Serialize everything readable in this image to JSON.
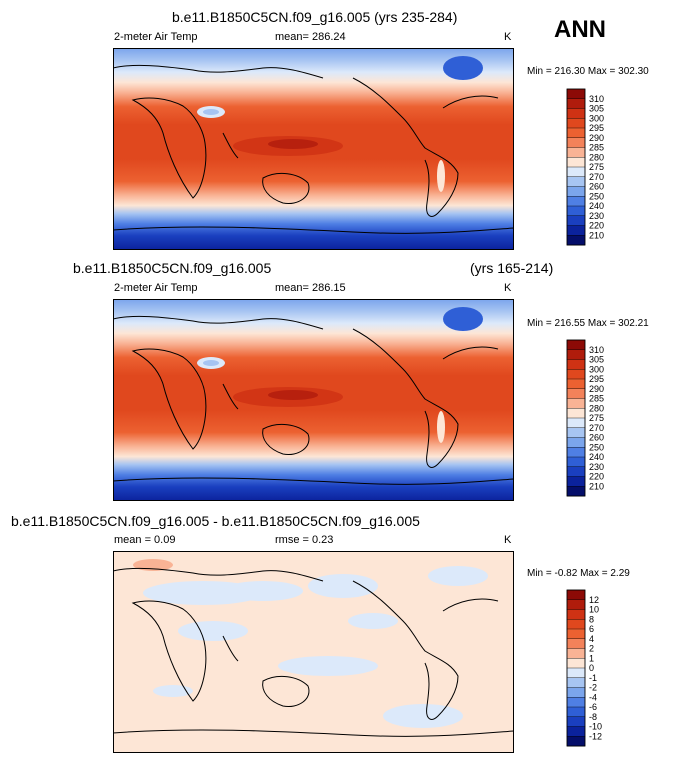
{
  "page_label": "ANN",
  "chart_data": [
    {
      "type": "heatmap",
      "title": "b.e11.B1850C5CN.f09_g16.005 (yrs 235-284)",
      "variable_label": "2-meter Air Temp",
      "mean_text": "mean= 286.24",
      "units": "K",
      "minmax_text": "Min = 216.30 Max = 302.30",
      "colorbar_ticks": [
        "310",
        "305",
        "300",
        "295",
        "290",
        "285",
        "280",
        "275",
        "270",
        "260",
        "250",
        "240",
        "230",
        "220",
        "210"
      ],
      "colorbar_colors": [
        "#8c0a06",
        "#b01c0c",
        "#cf3214",
        "#e0481e",
        "#ec6131",
        "#f3825a",
        "#f9b395",
        "#fde6d6",
        "#dce9fa",
        "#a7c5f2",
        "#7ba5ec",
        "#4f7fe4",
        "#2f5fd6",
        "#1a3fbf",
        "#0b229c",
        "#040e6a"
      ]
    },
    {
      "type": "heatmap",
      "title_left": "b.e11.B1850C5CN.f09_g16.005",
      "title_right": "(yrs 165-214)",
      "variable_label": "2-meter Air Temp",
      "mean_text": "mean= 286.15",
      "units": "K",
      "minmax_text": "Min = 216.55 Max = 302.21",
      "colorbar_ticks": [
        "310",
        "305",
        "300",
        "295",
        "290",
        "285",
        "280",
        "275",
        "270",
        "260",
        "250",
        "240",
        "230",
        "220",
        "210"
      ],
      "colorbar_colors": [
        "#8c0a06",
        "#b01c0c",
        "#cf3214",
        "#e0481e",
        "#ec6131",
        "#f3825a",
        "#f9b395",
        "#fde6d6",
        "#dce9fa",
        "#a7c5f2",
        "#7ba5ec",
        "#4f7fe4",
        "#2f5fd6",
        "#1a3fbf",
        "#0b229c",
        "#040e6a"
      ]
    },
    {
      "type": "heatmap",
      "title": "b.e11.B1850C5CN.f09_g16.005 - b.e11.B1850C5CN.f09_g16.005",
      "mean_text": "mean =  0.09",
      "rmse_text": "rmse =   0.23",
      "units": "K",
      "minmax_text": "Min = -0.82 Max =  2.29",
      "colorbar_ticks": [
        "12",
        "10",
        "8",
        "6",
        "4",
        "2",
        "1",
        "0",
        "-1",
        "-2",
        "-4",
        "-6",
        "-8",
        "-10",
        "-12"
      ],
      "colorbar_colors": [
        "#8c0a06",
        "#b01c0c",
        "#cf3214",
        "#e0481e",
        "#ec6131",
        "#f3825a",
        "#f9b395",
        "#fde6d6",
        "#dce9fa",
        "#a7c5f2",
        "#7ba5ec",
        "#4f7fe4",
        "#2f5fd6",
        "#1a3fbf",
        "#0b229c",
        "#040e6a"
      ]
    }
  ]
}
